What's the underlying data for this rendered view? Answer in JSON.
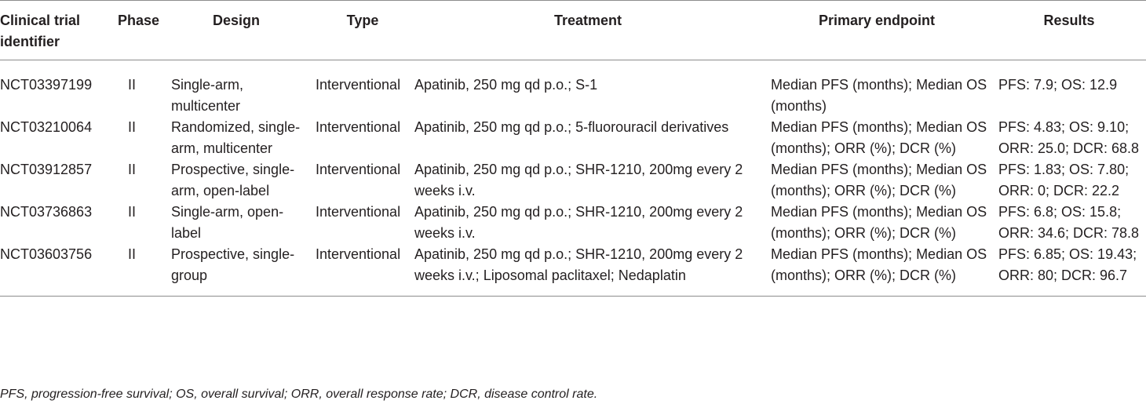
{
  "table": {
    "headers": [
      "Clinical trial identifier",
      "Phase",
      "Design",
      "Type",
      "Treatment",
      "Primary endpoint",
      "Results"
    ],
    "rows": [
      {
        "id": "NCT03397199",
        "phase": "II",
        "design": "Single-arm, multicenter",
        "type": "Interventional",
        "treatment": "Apatinib, 250 mg qd p.o.; S-1",
        "endpoint": "Median PFS (months); Median OS (months)",
        "results": "PFS: 7.9; OS: 12.9"
      },
      {
        "id": "NCT03210064",
        "phase": "II",
        "design": "Randomized, single-arm, multicenter",
        "type": "Interventional",
        "treatment": "Apatinib, 250 mg qd p.o.; 5-fluorouracil derivatives",
        "endpoint": "Median PFS (months); Median OS (months); ORR (%); DCR (%)",
        "results": "PFS: 4.83; OS: 9.10; ORR: 25.0; DCR: 68.8"
      },
      {
        "id": "NCT03912857",
        "phase": "II",
        "design": "Prospective, single-arm, open-label",
        "type": "Interventional",
        "treatment": "Apatinib, 250 mg qd p.o.; SHR-1210, 200mg every 2 weeks i.v.",
        "endpoint": "Median PFS (months); Median OS (months); ORR (%); DCR (%)",
        "results": "PFS: 1.83; OS: 7.80; ORR: 0; DCR: 22.2"
      },
      {
        "id": "NCT03736863",
        "phase": "II",
        "design": "Single-arm, open-label",
        "type": "Interventional",
        "treatment": "Apatinib, 250 mg qd p.o.; SHR-1210, 200mg every 2 weeks i.v.",
        "endpoint": "Median PFS (months); Median OS (months); ORR (%); DCR (%)",
        "results": "PFS: 6.8; OS: 15.8; ORR: 34.6; DCR: 78.8"
      },
      {
        "id": "NCT03603756",
        "phase": "II",
        "design": "Prospective, single-group",
        "type": "Interventional",
        "treatment": "Apatinib, 250 mg qd p.o.; SHR-1210, 200mg every 2 weeks i.v.; Liposomal paclitaxel; Nedaplatin",
        "endpoint": "Median PFS (months); Median OS (months); ORR (%); DCR (%)",
        "results": "PFS: 6.85; OS: 19.43; ORR: 80; DCR: 96.7"
      }
    ]
  },
  "footnote": "PFS, progression-free survival; OS, overall survival; ORR, overall response rate; DCR, disease control rate."
}
